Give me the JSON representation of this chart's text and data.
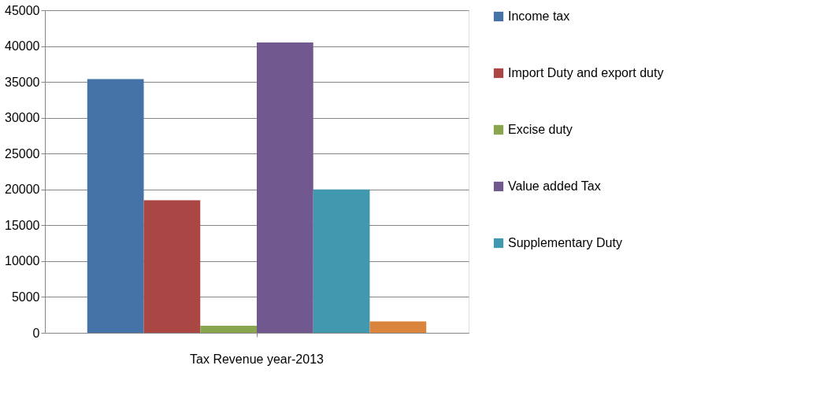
{
  "chart_data": {
    "type": "bar",
    "categories": [
      "Tax Revenue year-2013"
    ],
    "series": [
      {
        "name": "Income tax",
        "color": "#4572a7",
        "values": [
          35400
        ]
      },
      {
        "name": "Import Duty and export duty",
        "color": "#aa4643",
        "values": [
          18500
        ]
      },
      {
        "name": "Excise duty",
        "color": "#89a54e",
        "values": [
          1000
        ]
      },
      {
        "name": "Value added Tax",
        "color": "#71588f",
        "values": [
          40500
        ]
      },
      {
        "name": "Supplementary Duty",
        "color": "#4198af",
        "values": [
          20000
        ]
      },
      {
        "color": "#db843d",
        "values": [
          1600
        ]
      }
    ],
    "ylim": [
      0,
      45000
    ],
    "yticks": [
      0,
      5000,
      10000,
      15000,
      20000,
      25000,
      30000,
      35000,
      40000,
      45000
    ],
    "grid": "y",
    "legend": "right"
  }
}
